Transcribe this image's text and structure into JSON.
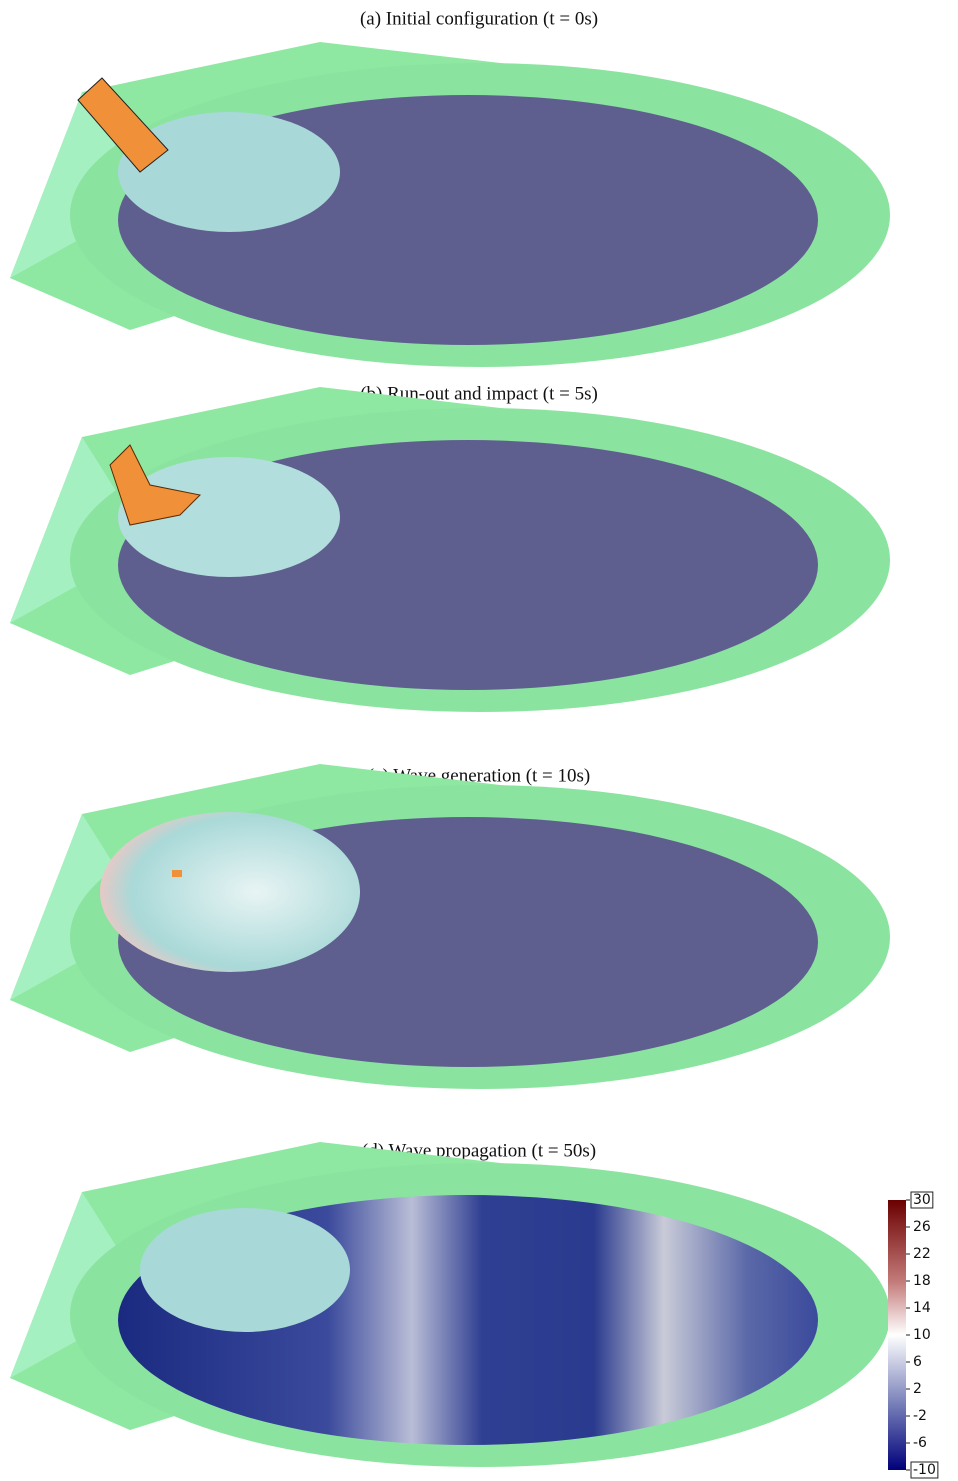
{
  "panels": [
    {
      "caption": "(a) Initial configuration (t = 0s)"
    },
    {
      "caption": "(b) Run-out and impact (t = 5s)"
    },
    {
      "caption": "(c) Wave generation (t = 10s)"
    },
    {
      "caption": "(d) Wave propagation (t = 50s)"
    }
  ],
  "colorbar": {
    "ylim": [
      -10,
      30
    ],
    "ticks": [
      30,
      26,
      22,
      18,
      14,
      10,
      6,
      2,
      -2,
      -6,
      -10
    ]
  }
}
